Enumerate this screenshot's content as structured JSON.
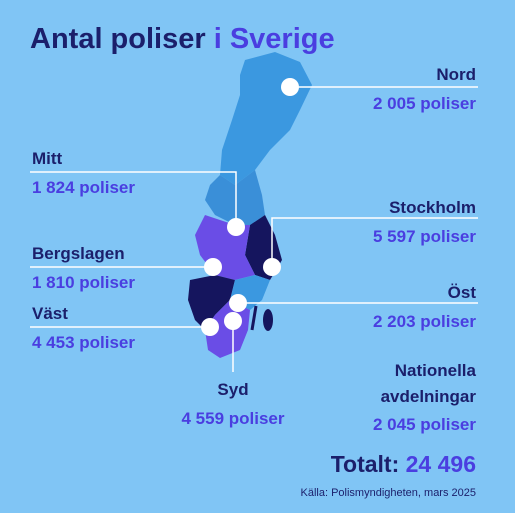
{
  "title": {
    "main": "Antal poliser",
    "highlight": "i Sverige"
  },
  "regions": [
    {
      "name": "Nord",
      "count": "2 005 poliser"
    },
    {
      "name": "Mitt",
      "count": "1 824 poliser"
    },
    {
      "name": "Stockholm",
      "count": "5 597 poliser"
    },
    {
      "name": "Bergslagen",
      "count": "1 810 poliser"
    },
    {
      "name": "Öst",
      "count": "2 203 poliser"
    },
    {
      "name": "Väst",
      "count": "4 453 poliser"
    },
    {
      "name": "Syd",
      "count": "4 559 poliser"
    }
  ],
  "national": {
    "name_lines": [
      "Nationella",
      "avdelningar"
    ],
    "count": "2 045 poliser"
  },
  "total": {
    "label": "Totalt:",
    "value": "24 496"
  },
  "source": "Källa: Polismyndigheten, mars 2025"
}
